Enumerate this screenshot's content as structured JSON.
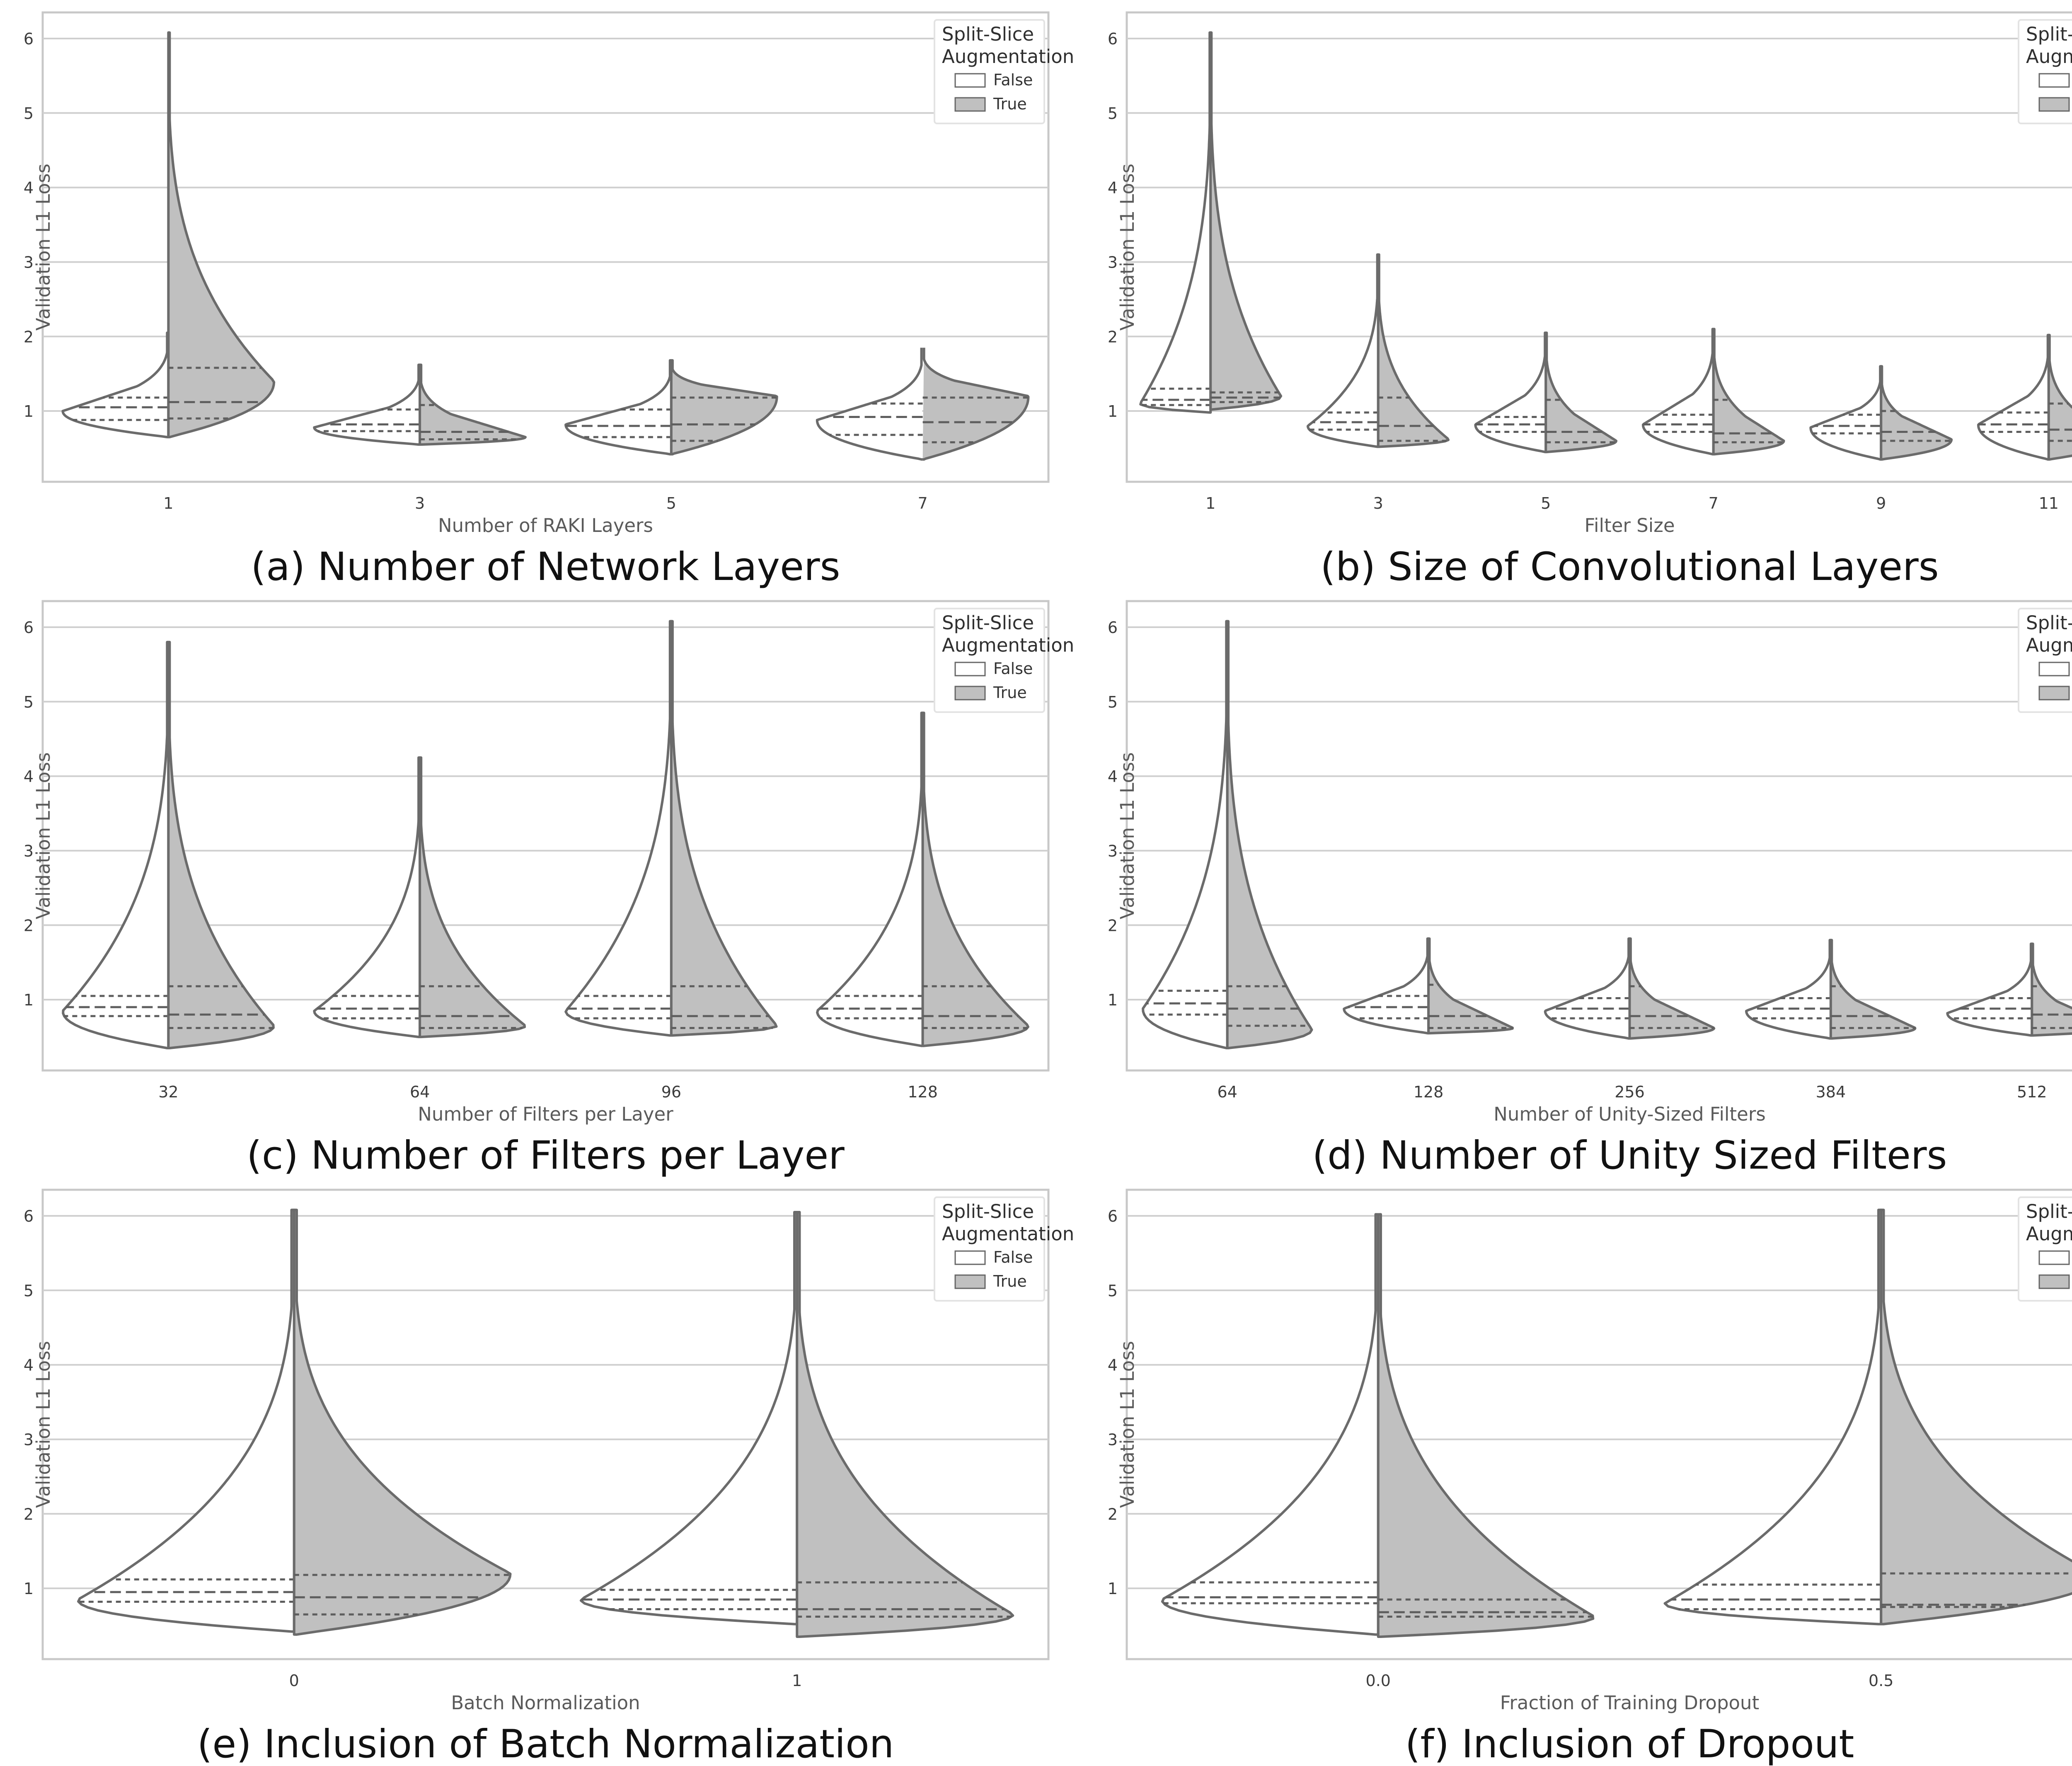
{
  "figure": {
    "legend": {
      "title_line1": "Split-Slice",
      "title_line2": "Augmentation",
      "entries": [
        "False",
        "True"
      ]
    },
    "colors": {
      "false_fill": "#ffffff",
      "true_fill": "#c0c0c0",
      "outline": "#6b6b6b",
      "grid": "#cfcfcf"
    }
  },
  "chart_data": [
    {
      "type": "violin",
      "caption": "(a) Number of Network Layers",
      "xlabel": "Number of RAKI Layers",
      "ylabel": "Validation L1 Loss",
      "ylim": [
        0.05,
        6.35
      ],
      "yticks": [
        1,
        2,
        3,
        4,
        5,
        6
      ],
      "grid": true,
      "legend_position": "top-right",
      "split_by": "Split-Slice Augmentation",
      "categories": [
        "1",
        "3",
        "5",
        "7"
      ],
      "violins": [
        {
          "false": {
            "min": 0.65,
            "max": 2.05,
            "q1": 0.88,
            "median": 1.05,
            "q3": 1.18,
            "mode": 1.0
          },
          "true": {
            "min": 0.65,
            "max": 6.08,
            "q1": 0.9,
            "median": 1.12,
            "q3": 1.58,
            "mode": 1.4
          }
        },
        {
          "false": {
            "min": 0.55,
            "max": 1.62,
            "q1": 0.73,
            "median": 0.82,
            "q3": 1.02,
            "mode": 0.78
          },
          "true": {
            "min": 0.55,
            "max": 1.62,
            "q1": 0.62,
            "median": 0.72,
            "q3": 1.08,
            "mode": 0.65
          }
        },
        {
          "false": {
            "min": 0.42,
            "max": 1.68,
            "q1": 0.65,
            "median": 0.8,
            "q3": 1.02,
            "mode": 0.82
          },
          "true": {
            "min": 0.42,
            "max": 1.68,
            "q1": 0.6,
            "median": 0.82,
            "q3": 1.18,
            "mode": 1.2
          }
        },
        {
          "false": {
            "min": 0.35,
            "max": 1.86,
            "q1": 0.68,
            "median": 0.92,
            "q3": 1.1,
            "mode": 0.88
          },
          "true": {
            "min": 0.35,
            "max": 1.86,
            "q1": 0.58,
            "median": 0.85,
            "q3": 1.18,
            "mode": 1.2
          }
        }
      ]
    },
    {
      "type": "violin",
      "caption": "(b) Size of Convolutional Layers",
      "xlabel": "Filter Size",
      "ylabel": "Validation L1 Loss",
      "ylim": [
        0.05,
        6.35
      ],
      "yticks": [
        1,
        2,
        3,
        4,
        5,
        6
      ],
      "grid": true,
      "legend_position": "top-right",
      "split_by": "Split-Slice Augmentation",
      "categories": [
        "1",
        "3",
        "5",
        "7",
        "9",
        "11"
      ],
      "violins": [
        {
          "false": {
            "min": 0.98,
            "max": 6.08,
            "q1": 1.08,
            "median": 1.15,
            "q3": 1.3,
            "mode": 1.1
          },
          "true": {
            "min": 1.02,
            "max": 6.08,
            "q1": 1.12,
            "median": 1.18,
            "q3": 1.25,
            "mode": 1.2
          }
        },
        {
          "false": {
            "min": 0.52,
            "max": 3.1,
            "q1": 0.75,
            "median": 0.85,
            "q3": 0.98,
            "mode": 0.8
          },
          "true": {
            "min": 0.52,
            "max": 3.1,
            "q1": 0.6,
            "median": 0.8,
            "q3": 1.18,
            "mode": 0.62
          }
        },
        {
          "false": {
            "min": 0.45,
            "max": 2.05,
            "q1": 0.72,
            "median": 0.82,
            "q3": 0.92,
            "mode": 0.82
          },
          "true": {
            "min": 0.45,
            "max": 2.05,
            "q1": 0.58,
            "median": 0.72,
            "q3": 1.15,
            "mode": 0.6
          }
        },
        {
          "false": {
            "min": 0.42,
            "max": 2.1,
            "q1": 0.72,
            "median": 0.82,
            "q3": 0.95,
            "mode": 0.82
          },
          "true": {
            "min": 0.42,
            "max": 2.1,
            "q1": 0.58,
            "median": 0.7,
            "q3": 1.15,
            "mode": 0.6
          }
        },
        {
          "false": {
            "min": 0.35,
            "max": 1.6,
            "q1": 0.7,
            "median": 0.8,
            "q3": 0.95,
            "mode": 0.78
          },
          "true": {
            "min": 0.35,
            "max": 1.6,
            "q1": 0.6,
            "median": 0.72,
            "q3": 1.0,
            "mode": 0.62
          }
        },
        {
          "false": {
            "min": 0.35,
            "max": 2.02,
            "q1": 0.72,
            "median": 0.82,
            "q3": 0.98,
            "mode": 0.82
          },
          "true": {
            "min": 0.35,
            "max": 2.02,
            "q1": 0.6,
            "median": 0.75,
            "q3": 1.1,
            "mode": 0.65
          }
        }
      ]
    },
    {
      "type": "violin",
      "caption": "(c) Number of Filters per Layer",
      "xlabel": "Number of Filters per Layer",
      "ylabel": "Validation L1 Loss",
      "ylim": [
        0.05,
        6.35
      ],
      "yticks": [
        1,
        2,
        3,
        4,
        5,
        6
      ],
      "grid": true,
      "legend_position": "top-right",
      "split_by": "Split-Slice Augmentation",
      "categories": [
        "32",
        "64",
        "96",
        "128"
      ],
      "violins": [
        {
          "false": {
            "min": 0.35,
            "max": 5.8,
            "q1": 0.78,
            "median": 0.9,
            "q3": 1.05,
            "mode": 0.85
          },
          "true": {
            "min": 0.35,
            "max": 5.8,
            "q1": 0.62,
            "median": 0.8,
            "q3": 1.18,
            "mode": 0.65
          }
        },
        {
          "false": {
            "min": 0.5,
            "max": 4.25,
            "q1": 0.75,
            "median": 0.88,
            "q3": 1.05,
            "mode": 0.85
          },
          "true": {
            "min": 0.5,
            "max": 4.25,
            "q1": 0.62,
            "median": 0.78,
            "q3": 1.18,
            "mode": 0.65
          }
        },
        {
          "false": {
            "min": 0.52,
            "max": 6.08,
            "q1": 0.75,
            "median": 0.88,
            "q3": 1.05,
            "mode": 0.85
          },
          "true": {
            "min": 0.52,
            "max": 6.08,
            "q1": 0.62,
            "median": 0.78,
            "q3": 1.18,
            "mode": 0.65
          }
        },
        {
          "false": {
            "min": 0.38,
            "max": 4.85,
            "q1": 0.75,
            "median": 0.88,
            "q3": 1.05,
            "mode": 0.85
          },
          "true": {
            "min": 0.38,
            "max": 4.85,
            "q1": 0.62,
            "median": 0.78,
            "q3": 1.18,
            "mode": 0.65
          }
        }
      ]
    },
    {
      "type": "violin",
      "caption": "(d) Number of Unity Sized Filters",
      "xlabel": "Number of Unity-Sized Filters",
      "ylabel": "Validation L1 Loss",
      "ylim": [
        0.05,
        6.35
      ],
      "yticks": [
        1,
        2,
        3,
        4,
        5,
        6
      ],
      "grid": true,
      "legend_position": "top-right",
      "split_by": "Split-Slice Augmentation",
      "categories": [
        "64",
        "128",
        "256",
        "384",
        "512"
      ],
      "violins": [
        {
          "false": {
            "min": 0.35,
            "max": 6.08,
            "q1": 0.8,
            "median": 0.95,
            "q3": 1.12,
            "mode": 0.88
          },
          "true": {
            "min": 0.35,
            "max": 6.08,
            "q1": 0.65,
            "median": 0.88,
            "q3": 1.18,
            "mode": 0.6
          }
        },
        {
          "false": {
            "min": 0.55,
            "max": 1.82,
            "q1": 0.75,
            "median": 0.9,
            "q3": 1.05,
            "mode": 0.88
          },
          "true": {
            "min": 0.55,
            "max": 1.82,
            "q1": 0.62,
            "median": 0.78,
            "q3": 1.2,
            "mode": 0.62
          }
        },
        {
          "false": {
            "min": 0.48,
            "max": 1.82,
            "q1": 0.75,
            "median": 0.88,
            "q3": 1.02,
            "mode": 0.85
          },
          "true": {
            "min": 0.48,
            "max": 1.82,
            "q1": 0.62,
            "median": 0.78,
            "q3": 1.18,
            "mode": 0.62
          }
        },
        {
          "false": {
            "min": 0.48,
            "max": 1.8,
            "q1": 0.75,
            "median": 0.88,
            "q3": 1.02,
            "mode": 0.85
          },
          "true": {
            "min": 0.48,
            "max": 1.8,
            "q1": 0.62,
            "median": 0.78,
            "q3": 1.18,
            "mode": 0.62
          }
        },
        {
          "false": {
            "min": 0.52,
            "max": 1.75,
            "q1": 0.75,
            "median": 0.88,
            "q3": 1.02,
            "mode": 0.82
          },
          "true": {
            "min": 0.52,
            "max": 1.75,
            "q1": 0.62,
            "median": 0.8,
            "q3": 1.18,
            "mode": 0.62
          }
        }
      ]
    },
    {
      "type": "violin",
      "caption": "(e) Inclusion of Batch Normalization",
      "xlabel": "Batch Normalization",
      "ylabel": "Validation L1 Loss",
      "ylim": [
        0.05,
        6.35
      ],
      "yticks": [
        1,
        2,
        3,
        4,
        5,
        6
      ],
      "grid": true,
      "legend_position": "top-right",
      "split_by": "Split-Slice Augmentation",
      "categories": [
        "0",
        "1"
      ],
      "violins": [
        {
          "false": {
            "min": 0.42,
            "max": 6.08,
            "q1": 0.82,
            "median": 0.95,
            "q3": 1.12,
            "mode": 0.85
          },
          "true": {
            "min": 0.38,
            "max": 6.08,
            "q1": 0.65,
            "median": 0.88,
            "q3": 1.18,
            "mode": 1.2
          }
        },
        {
          "false": {
            "min": 0.52,
            "max": 6.05,
            "q1": 0.72,
            "median": 0.85,
            "q3": 0.98,
            "mode": 0.85
          },
          "true": {
            "min": 0.35,
            "max": 6.05,
            "q1": 0.62,
            "median": 0.72,
            "q3": 1.08,
            "mode": 0.65
          }
        }
      ]
    },
    {
      "type": "violin",
      "caption": "(f) Inclusion of Dropout",
      "xlabel": "Fraction of Training Dropout",
      "ylabel": "Validation L1 Loss",
      "ylim": [
        0.05,
        6.35
      ],
      "yticks": [
        1,
        2,
        3,
        4,
        5,
        6
      ],
      "grid": true,
      "legend_position": "top-right",
      "split_by": "Split-Slice Augmentation",
      "categories": [
        "0.0",
        "0.5"
      ],
      "violins": [
        {
          "false": {
            "min": 0.38,
            "max": 6.02,
            "q1": 0.8,
            "median": 0.88,
            "q3": 1.08,
            "mode": 0.85
          },
          "true": {
            "min": 0.35,
            "max": 6.02,
            "q1": 0.62,
            "median": 0.68,
            "q3": 0.85,
            "mode": 0.62
          }
        },
        {
          "false": {
            "min": 0.52,
            "max": 6.08,
            "q1": 0.72,
            "median": 0.85,
            "q3": 1.05,
            "mode": 0.8
          },
          "true": {
            "min": 0.52,
            "max": 6.08,
            "q1": 0.75,
            "median": 0.78,
            "q3": 1.2,
            "mode": 1.18
          }
        }
      ]
    }
  ]
}
